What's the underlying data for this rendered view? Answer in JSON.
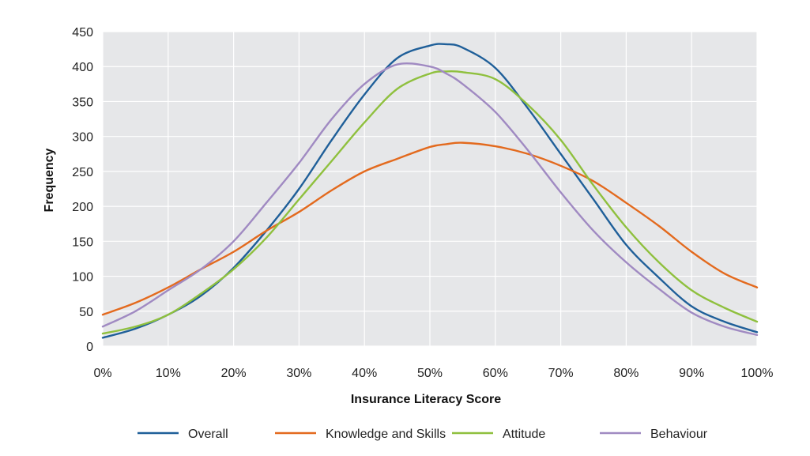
{
  "chart_data": {
    "type": "line",
    "title": "",
    "xlabel": "Insurance Literacy Score",
    "ylabel": "Frequency",
    "xlim": [
      0,
      100
    ],
    "ylim": [
      0,
      450
    ],
    "grid": true,
    "legend_position": "bottom",
    "x_ticks": [
      0,
      10,
      20,
      30,
      40,
      50,
      60,
      70,
      80,
      90,
      100
    ],
    "x_tick_labels": [
      "0%",
      "10%",
      "20%",
      "30%",
      "40%",
      "50%",
      "60%",
      "70%",
      "80%",
      "90%",
      "100%"
    ],
    "y_ticks": [
      0,
      50,
      100,
      150,
      200,
      250,
      300,
      350,
      400,
      450
    ],
    "y_tick_labels": [
      "0",
      "50",
      "100",
      "150",
      "200",
      "250",
      "300",
      "350",
      "400",
      "450"
    ],
    "x": [
      0,
      5,
      10,
      15,
      20,
      25,
      30,
      35,
      40,
      45,
      50,
      52.5,
      55,
      60,
      65,
      70,
      75,
      80,
      85,
      90,
      95,
      100
    ],
    "series": [
      {
        "name": "Overall",
        "color": "#1f5f99",
        "values": [
          12,
          25,
          45,
          72,
          112,
          165,
          225,
          295,
          360,
          412,
          430,
          432,
          427,
          398,
          340,
          275,
          210,
          145,
          98,
          57,
          35,
          20
        ]
      },
      {
        "name": "Knowledge and Skills",
        "color": "#e36a1e",
        "values": [
          45,
          62,
          84,
          110,
          135,
          165,
          192,
          223,
          250,
          268,
          285,
          289,
          291,
          286,
          275,
          258,
          236,
          205,
          172,
          135,
          104,
          84
        ]
      },
      {
        "name": "Attitude",
        "color": "#8fc03e",
        "values": [
          18,
          28,
          45,
          75,
          110,
          155,
          210,
          265,
          320,
          368,
          390,
          393,
          392,
          382,
          345,
          295,
          230,
          170,
          120,
          80,
          55,
          35
        ]
      },
      {
        "name": "Behaviour",
        "color": "#a08ac2",
        "values": [
          28,
          50,
          80,
          110,
          150,
          205,
          262,
          325,
          375,
          403,
          400,
          390,
          375,
          335,
          280,
          220,
          165,
          120,
          82,
          48,
          28,
          16
        ]
      }
    ]
  }
}
